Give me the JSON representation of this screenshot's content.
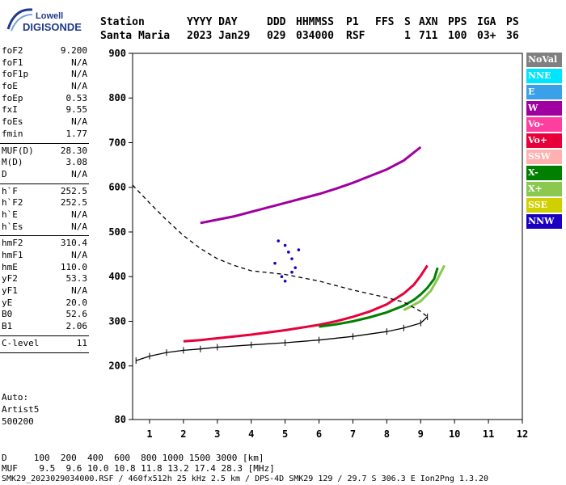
{
  "logo": {
    "line1": "Lowell",
    "line2": "DIGISONDE"
  },
  "header": {
    "labels": [
      "Station",
      "YYYY DAY",
      "DDD",
      "HHMMSS",
      "P1",
      "FFS",
      "S",
      "AXN",
      "PPS",
      "IGA",
      "PS"
    ],
    "values": [
      "Santa Maria",
      "2023 Jan29",
      "029",
      "034000",
      "RSF",
      "",
      "1",
      "711",
      "100",
      "03+",
      "36"
    ]
  },
  "params": [
    {
      "name": "foF2",
      "value": "9.200"
    },
    {
      "name": "foF1",
      "value": "N/A"
    },
    {
      "name": "foF1p",
      "value": "N/A"
    },
    {
      "name": "foE",
      "value": "N/A"
    },
    {
      "name": "foEp",
      "value": "0.53"
    },
    {
      "name": "fxI",
      "value": "9.55"
    },
    {
      "name": "foEs",
      "value": "N/A"
    },
    {
      "name": "fmin",
      "value": "1.77"
    },
    {
      "sep": true
    },
    {
      "name": "MUF(D)",
      "value": "28.30"
    },
    {
      "name": "M(D)",
      "value": "3.08"
    },
    {
      "name": "D",
      "value": "N/A"
    },
    {
      "sep": true
    },
    {
      "name": "h`F",
      "value": "252.5"
    },
    {
      "name": "h`F2",
      "value": "252.5"
    },
    {
      "name": "h`E",
      "value": "N/A"
    },
    {
      "name": "h`Es",
      "value": "N/A"
    },
    {
      "sep": true
    },
    {
      "name": "hmF2",
      "value": "310.4"
    },
    {
      "name": "hmF1",
      "value": "N/A"
    },
    {
      "name": "hmE",
      "value": "110.0"
    },
    {
      "name": "yF2",
      "value": "53.3"
    },
    {
      "name": "yF1",
      "value": "N/A"
    },
    {
      "name": "yE",
      "value": "20.0"
    },
    {
      "name": "B0",
      "value": "52.6"
    },
    {
      "name": "B1",
      "value": "2.06"
    },
    {
      "sep": true
    },
    {
      "name": "C-level",
      "value": "11"
    },
    {
      "sep": true
    }
  ],
  "auto": {
    "line1": "Auto:",
    "line2": "Artist5",
    "line3": "500200"
  },
  "legend": [
    {
      "label": "NoVal",
      "color": "#808080"
    },
    {
      "label": "NNE",
      "color": "#00e5ff"
    },
    {
      "label": "E",
      "color": "#3aa0e8"
    },
    {
      "label": "W",
      "color": "#a0009f"
    },
    {
      "label": "Vo-",
      "color": "#ff3fa0"
    },
    {
      "label": "Vo+",
      "color": "#e8003a"
    },
    {
      "label": "SSW",
      "color": "#ffb0b0"
    },
    {
      "label": "X-",
      "color": "#007f00"
    },
    {
      "label": "X+",
      "color": "#8ac850"
    },
    {
      "label": "SSE",
      "color": "#d0d000"
    },
    {
      "label": "NNW",
      "color": "#1a00c0"
    }
  ],
  "footer": {
    "d_row": "D     100  200  400  600  800 1000 1500 3000 [km]",
    "muf_row": "MUF    9.5  9.6 10.0 10.8 11.8 13.2 17.4 28.3 [MHz]",
    "info_row": "SMK29_2023029034000.RSF / 460fx512h 25 kHz 2.5 km / DPS-4D SMK29 129 / 29.7 S 306.3 E Ion2Png 1.3.20"
  },
  "chart_data": {
    "type": "scatter",
    "title": "",
    "xlabel": "",
    "ylabel": "",
    "xlim": [
      0.5,
      12
    ],
    "ylim": [
      80,
      900
    ],
    "xticks": [
      1,
      2,
      3,
      4,
      5,
      6,
      7,
      8,
      9,
      10,
      11,
      12
    ],
    "yticks": [
      80,
      200,
      300,
      400,
      500,
      600,
      700,
      800,
      900
    ],
    "grid": false,
    "series": [
      {
        "kind": "trace",
        "color": "#e8003a",
        "x": [
          2.0,
          2.5,
          3.0,
          4.0,
          5.0,
          6.0,
          6.5,
          7.0,
          7.5,
          8.0,
          8.5,
          8.8,
          9.0,
          9.2
        ],
        "y": [
          255,
          258,
          262,
          270,
          280,
          292,
          300,
          310,
          322,
          338,
          362,
          382,
          402,
          425
        ]
      },
      {
        "kind": "trace",
        "color": "#007f00",
        "x": [
          6.0,
          6.5,
          7.0,
          7.5,
          8.0,
          8.5,
          8.8,
          9.0,
          9.2,
          9.4,
          9.5
        ],
        "y": [
          288,
          293,
          300,
          309,
          320,
          335,
          348,
          360,
          375,
          395,
          420
        ]
      },
      {
        "kind": "trace",
        "color": "#8ac850",
        "x": [
          8.5,
          9.0,
          9.3,
          9.5,
          9.7
        ],
        "y": [
          325,
          345,
          368,
          395,
          425
        ]
      },
      {
        "kind": "trace",
        "color": "#a0009f",
        "x": [
          2.5,
          3.5,
          4.5,
          5.0,
          5.5,
          6.0,
          6.5,
          7.0,
          7.5,
          8.0,
          8.5,
          9.0
        ],
        "y": [
          520,
          535,
          555,
          565,
          575,
          585,
          597,
          610,
          625,
          640,
          660,
          690
        ]
      },
      {
        "kind": "profile",
        "color": "#000000",
        "x": [
          0.6,
          1.0,
          1.5,
          2.0,
          2.5,
          3.0,
          4.0,
          5.0,
          6.0,
          7.0,
          8.0,
          8.5,
          9.0,
          9.2
        ],
        "y": [
          212,
          222,
          230,
          235,
          238,
          242,
          247,
          252,
          258,
          266,
          277,
          285,
          296,
          310
        ]
      },
      {
        "kind": "dashed",
        "color": "#000000",
        "x": [
          0.5,
          1.0,
          1.5,
          2.0,
          2.5,
          3.0,
          3.5,
          4.0,
          5.0,
          6.0,
          7.0,
          8.0,
          8.5,
          9.0,
          9.2
        ],
        "y": [
          605,
          565,
          527,
          492,
          463,
          440,
          425,
          413,
          405,
          390,
          370,
          353,
          343,
          322,
          310
        ]
      },
      {
        "kind": "cluster",
        "color": "#1a00c0",
        "x": [
          4.8,
          5.0,
          5.1,
          5.2,
          5.3,
          4.9,
          5.0,
          5.2,
          4.7,
          5.4
        ],
        "y": [
          480,
          470,
          455,
          440,
          420,
          400,
          390,
          410,
          430,
          460
        ]
      }
    ]
  }
}
